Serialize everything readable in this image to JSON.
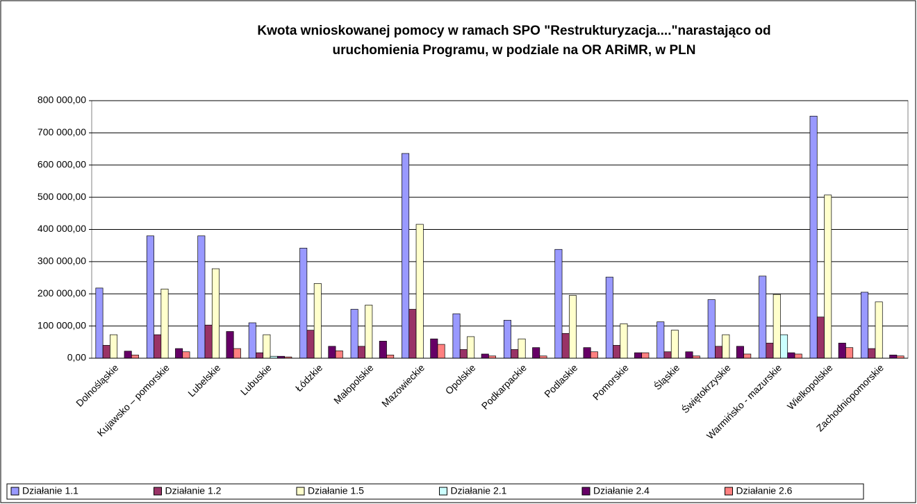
{
  "chart_data": {
    "type": "bar",
    "title": [
      "Kwota wnioskowanej pomocy w ramach SPO \"Restrukturyzacja....\"narastająco od",
      "uruchomienia Programu, w podziale na OR ARiMR, w PLN"
    ],
    "categories": [
      "Dolnośląskie",
      "Kujawsko – pomorskie",
      "Lubelskie",
      "Lubuskie",
      "Łódzkie",
      "Małopolskie",
      "Mazowieckie",
      "Opolskie",
      "Podkarpackie",
      "Podlaskie",
      "Pomorskie",
      "Śląskie",
      "Świętokrzyskie",
      "Warmińsko - mazurskie",
      "Wielkopolskie",
      "Zachodniopomorskie"
    ],
    "series": [
      {
        "name": "Działanie 1.1",
        "color": "#9999ff",
        "values": [
          218000,
          380000,
          380000,
          110000,
          342000,
          152000,
          636000,
          138000,
          118000,
          338000,
          252000,
          113000,
          182000,
          255000,
          752000,
          205000
        ]
      },
      {
        "name": "Działanie 1.2",
        "color": "#993366",
        "values": [
          40000,
          73000,
          103000,
          17000,
          87000,
          37000,
          152000,
          27000,
          27000,
          77000,
          40000,
          20000,
          37000,
          47000,
          128000,
          30000
        ]
      },
      {
        "name": "Działanie 1.5",
        "color": "#ffffcc",
        "values": [
          73000,
          215000,
          278000,
          73000,
          232000,
          165000,
          416000,
          67000,
          60000,
          195000,
          107000,
          87000,
          73000,
          198000,
          507000,
          175000
        ]
      },
      {
        "name": "Działanie 2.1",
        "color": "#ccffff",
        "values": [
          0,
          0,
          0,
          6000,
          0,
          0,
          0,
          0,
          0,
          0,
          0,
          0,
          0,
          73000,
          0,
          0
        ]
      },
      {
        "name": "Działanie 2.4",
        "color": "#660066",
        "values": [
          22000,
          30000,
          83000,
          6000,
          37000,
          53000,
          60000,
          13000,
          33000,
          33000,
          17000,
          20000,
          37000,
          17000,
          47000,
          10000
        ]
      },
      {
        "name": "Działanie 2.6",
        "color": "#ff8080",
        "values": [
          10000,
          20000,
          30000,
          4000,
          23000,
          10000,
          43000,
          7000,
          7000,
          20000,
          17000,
          7000,
          13000,
          13000,
          33000,
          7000
        ]
      }
    ],
    "ylim": [
      0,
      800000
    ],
    "yticks": [
      {
        "value": 0,
        "label": "0,00"
      },
      {
        "value": 100000,
        "label": "100 000,00"
      },
      {
        "value": 200000,
        "label": "200 000,00"
      },
      {
        "value": 300000,
        "label": "300 000,00"
      },
      {
        "value": 400000,
        "label": "400 000,00"
      },
      {
        "value": 500000,
        "label": "500 000,00"
      },
      {
        "value": 600000,
        "label": "600 000,00"
      },
      {
        "value": 700000,
        "label": "700 000,00"
      },
      {
        "value": 800000,
        "label": "800 000,00"
      }
    ],
    "grid": true,
    "legend": "bottom"
  }
}
